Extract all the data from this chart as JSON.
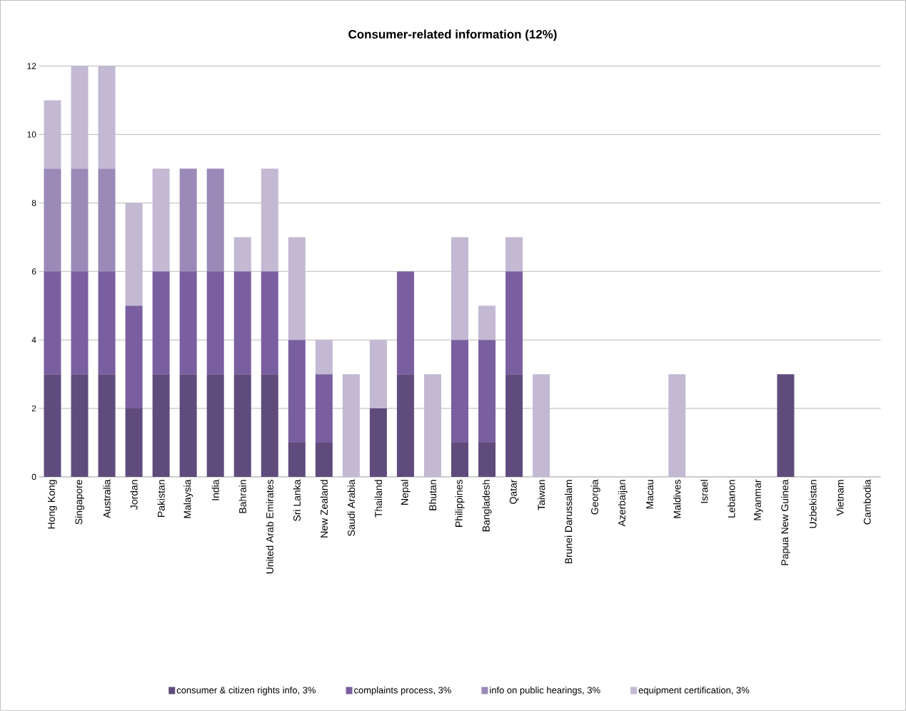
{
  "chart_data": {
    "type": "bar",
    "stacked": true,
    "title": "Consumer-related information (12%)",
    "categories": [
      "Hong Kong",
      "Singapore",
      "Australia",
      "Jordan",
      "Pakistan",
      "Malaysia",
      "India",
      "Bahrain",
      "United Arab Emirates",
      "Sri Lanka",
      "New Zealand",
      "Saudi Arabia",
      "Thailand",
      "Nepal",
      "Bhutan",
      "Philippines",
      "Bangladesh",
      "Qatar",
      "Taiwan",
      "Brunei Darussalam",
      "Georgia",
      "Azerbaijan",
      "Macau",
      "Maldives",
      "Israel",
      "Lebanon",
      "Myanmar",
      "Papua New Guinea",
      "Uzbekistan",
      "Vietnam",
      "Cambodia"
    ],
    "series": [
      {
        "name": "consumer & citizen rights info, 3%",
        "color": "#604c7c",
        "values": [
          3,
          3,
          3,
          2,
          3,
          3,
          3,
          3,
          3,
          1,
          1,
          0,
          2,
          3,
          0,
          1,
          1,
          3,
          0,
          0,
          0,
          0,
          0,
          0,
          0,
          0,
          0,
          3,
          0,
          0,
          0
        ]
      },
      {
        "name": "complaints process, 3%",
        "color": "#7a5fa0",
        "values": [
          3,
          3,
          3,
          3,
          3,
          3,
          3,
          3,
          3,
          3,
          2,
          0,
          0,
          3,
          0,
          3,
          3,
          3,
          0,
          0,
          0,
          0,
          0,
          0,
          0,
          0,
          0,
          0,
          0,
          0,
          0
        ]
      },
      {
        "name": "info on public hearings, 3%",
        "color": "#9b8ab8",
        "values": [
          3,
          3,
          3,
          0,
          0,
          3,
          3,
          0,
          0,
          0,
          0,
          0,
          0,
          0,
          0,
          0,
          0,
          0,
          0,
          0,
          0,
          0,
          0,
          0,
          0,
          0,
          0,
          0,
          0,
          0,
          0
        ]
      },
      {
        "name": "equipment certification, 3%",
        "color": "#c3b9d3",
        "values": [
          2,
          3,
          3,
          3,
          3,
          0,
          0,
          1,
          3,
          3,
          1,
          3,
          2,
          0,
          3,
          3,
          1,
          1,
          3,
          0,
          0,
          0,
          0,
          3,
          0,
          0,
          0,
          0,
          0,
          0,
          0
        ]
      }
    ],
    "ylim": [
      0,
      12
    ],
    "yticks": [
      0,
      2,
      4,
      6,
      8,
      10,
      12
    ],
    "grid": "y",
    "legend": "bottom"
  }
}
